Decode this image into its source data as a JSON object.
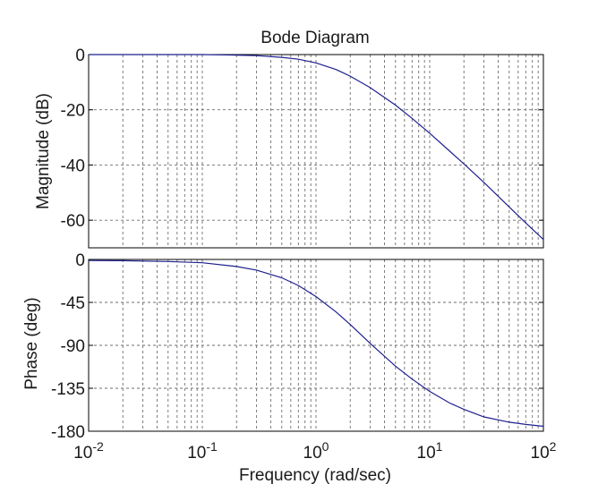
{
  "chart_data": {
    "type": "line",
    "title": "Bode Diagram",
    "xlabel": "Frequency  (rad/sec)",
    "xscale": "log",
    "xlim": [
      0.01,
      100
    ],
    "x_tick_labels": [
      {
        "base": "10",
        "exp": "-2"
      },
      {
        "base": "10",
        "exp": "-1"
      },
      {
        "base": "10",
        "exp": "0"
      },
      {
        "base": "10",
        "exp": "1"
      },
      {
        "base": "10",
        "exp": "2"
      }
    ],
    "grid": true,
    "line_color": "#1f1f8f",
    "panels": [
      {
        "ylabel": "Magnitude (dB)",
        "ylim": [
          -70,
          0
        ],
        "yticks": [
          0,
          -20,
          -40,
          -60
        ],
        "series": [
          {
            "x": [
              0.01,
              0.02,
              0.05,
              0.1,
              0.2,
              0.3,
              0.5,
              0.7,
              1,
              1.5,
              2,
              3,
              5,
              7,
              10,
              15,
              20,
              30,
              50,
              70,
              100
            ],
            "values": [
              0,
              0,
              0,
              0,
              -0.2,
              -0.4,
              -1.0,
              -1.7,
              -3.0,
              -5.4,
              -7.8,
              -12.0,
              -18.3,
              -23.1,
              -28.5,
              -35.0,
              -39.6,
              -46.3,
              -55.2,
              -61.0,
              -67.0
            ]
          }
        ]
      },
      {
        "ylabel": "Phase (deg)",
        "ylim": [
          -180,
          0
        ],
        "yticks": [
          0,
          -45,
          -90,
          -135,
          -180
        ],
        "series": [
          {
            "x": [
              0.01,
              0.02,
              0.05,
              0.1,
              0.2,
              0.3,
              0.5,
              0.7,
              1,
              1.5,
              2,
              3,
              5,
              7,
              10,
              15,
              20,
              30,
              50,
              70,
              100
            ],
            "values": [
              -1.1,
              -1.3,
              -2.2,
              -3.5,
              -7.4,
              -11.2,
              -19.2,
              -27.3,
              -38.9,
              -55.0,
              -68.2,
              -88.0,
              -111.8,
              -125.3,
              -138.3,
              -150.5,
              -157.1,
              -165.0,
              -170.5,
              -172.9,
              -174.8
            ]
          }
        ]
      }
    ]
  }
}
